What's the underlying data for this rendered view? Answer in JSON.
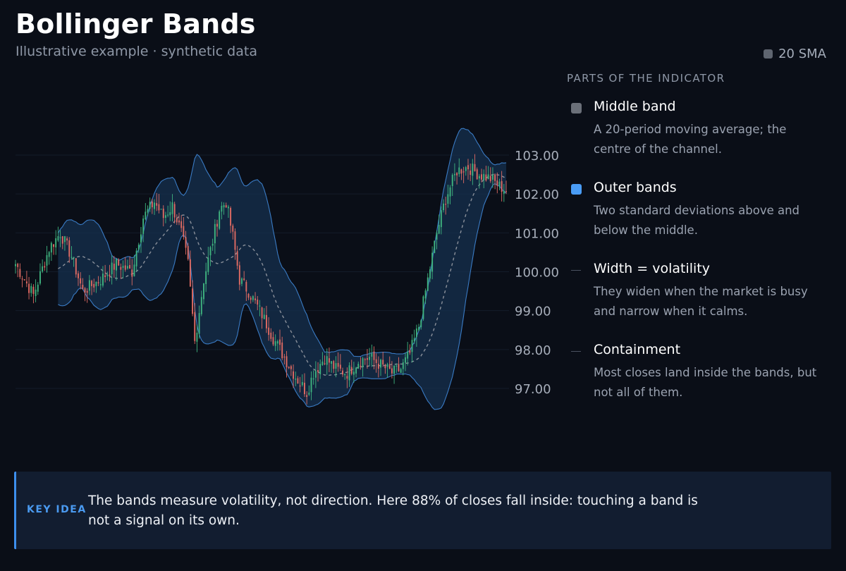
{
  "header": {
    "title": "Bollinger Bands",
    "subtitle": "Illustrative example · synthetic data"
  },
  "legend": {
    "label": "20 SMA",
    "color": "#5f6570"
  },
  "panel": {
    "heading": "PARTS OF THE INDICATOR",
    "parts": [
      {
        "title": "Middle band",
        "desc": "A 20-period moving average; the centre of the channel.",
        "marker": "square",
        "color": "#6b7079"
      },
      {
        "title": "Outer bands",
        "desc": "Two standard deviations above and below the middle.",
        "marker": "square",
        "color": "#4a9cf5"
      },
      {
        "title": "Width = volatility",
        "desc": "They widen when the market is busy and narrow when it calms.",
        "marker": "dash",
        "color": "#4a5160"
      },
      {
        "title": "Containment",
        "desc": "Most closes land inside the bands, but not all of them.",
        "marker": "dash",
        "color": "#4a5160"
      }
    ]
  },
  "key_idea": {
    "label": "KEY IDEA",
    "text": "The bands measure volatility, not direction. Here 88% of closes fall inside: touching a band is not a signal on its own."
  },
  "chart_data": {
    "type": "candlestick",
    "y_ticks": [
      "103.00",
      "102.00",
      "101.00",
      "100.00",
      "99.00",
      "98.00",
      "97.00"
    ],
    "ylim": [
      95.9,
      104.4
    ],
    "grid": true,
    "legend_position": "top-right",
    "colors": {
      "up": "#3fb37f",
      "down": "#e06b63",
      "band_fill": "#16304f",
      "band_stroke": "#3a7bc4",
      "sma": "#8a909a"
    },
    "price_anchors": [
      [
        0,
        100.2
      ],
      [
        8,
        99.4
      ],
      [
        15,
        100.6
      ],
      [
        20,
        101.0
      ],
      [
        25,
        100.4
      ],
      [
        30,
        99.5
      ],
      [
        38,
        99.8
      ],
      [
        45,
        100.2
      ],
      [
        52,
        100.0
      ],
      [
        57,
        101.4
      ],
      [
        62,
        101.8
      ],
      [
        66,
        101.4
      ],
      [
        70,
        101.7
      ],
      [
        74,
        101.0
      ],
      [
        77,
        100.2
      ],
      [
        80,
        98.2
      ],
      [
        84,
        99.8
      ],
      [
        88,
        100.8
      ],
      [
        91,
        101.6
      ],
      [
        94,
        101.8
      ],
      [
        97,
        100.9
      ],
      [
        100,
        99.8
      ],
      [
        104,
        99.5
      ],
      [
        110,
        98.9
      ],
      [
        115,
        98.3
      ],
      [
        120,
        97.8
      ],
      [
        125,
        97.3
      ],
      [
        130,
        96.9
      ],
      [
        133,
        97.4
      ],
      [
        138,
        97.8
      ],
      [
        143,
        97.5
      ],
      [
        148,
        97.4
      ],
      [
        153,
        97.7
      ],
      [
        158,
        97.8
      ],
      [
        163,
        97.6
      ],
      [
        168,
        97.4
      ],
      [
        172,
        97.5
      ],
      [
        176,
        97.9
      ],
      [
        180,
        98.6
      ],
      [
        184,
        99.8
      ],
      [
        188,
        101.0
      ],
      [
        192,
        101.9
      ],
      [
        197,
        102.6
      ],
      [
        202,
        102.7
      ],
      [
        207,
        102.5
      ],
      [
        212,
        102.4
      ],
      [
        216,
        102.2
      ],
      [
        219,
        102.1
      ]
    ]
  }
}
